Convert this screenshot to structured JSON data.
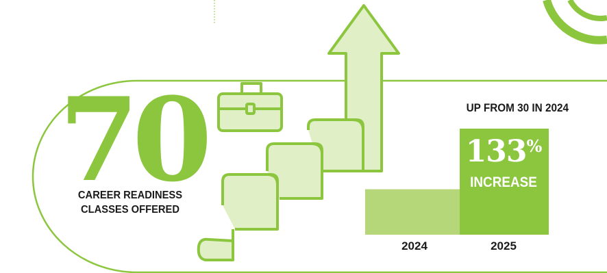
{
  "headline": {
    "number": "70",
    "caption_line1": "CAREER READINESS",
    "caption_line2": "CLASSES OFFERED"
  },
  "comparison_note": "UP FROM 30 IN 2024",
  "increase": {
    "value": "133",
    "unit": "%",
    "label": "INCREASE"
  },
  "icons": [
    "briefcase-icon",
    "rising-arrow-icon",
    "scroll-staircase-icon"
  ],
  "colors": {
    "accent_green": "#8cc63f",
    "light_green": "#b5d77a",
    "pale_green": "#e1efc7",
    "text_dark": "#1a1a1a"
  },
  "chart_data": {
    "type": "bar",
    "categories": [
      "2024",
      "2025"
    ],
    "values": [
      30,
      70
    ],
    "title": "",
    "xlabel": "",
    "ylabel": "",
    "ylim": [
      0,
      70
    ],
    "annotation": "133% INCREASE"
  }
}
